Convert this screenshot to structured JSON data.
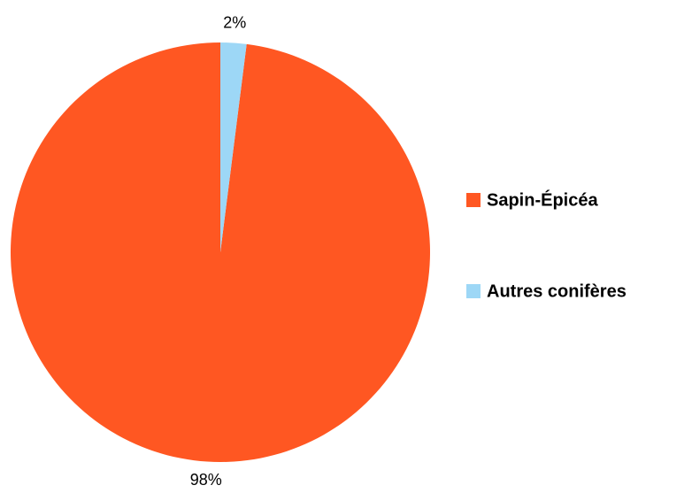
{
  "chart_data": {
    "type": "pie",
    "categories": [
      "Sapin-Épicéa",
      "Autres conifères"
    ],
    "values": [
      98,
      2
    ],
    "value_labels": [
      "98%",
      "2%"
    ],
    "colors": [
      "#ff5722",
      "#9dd7f6"
    ],
    "legend": "right"
  }
}
